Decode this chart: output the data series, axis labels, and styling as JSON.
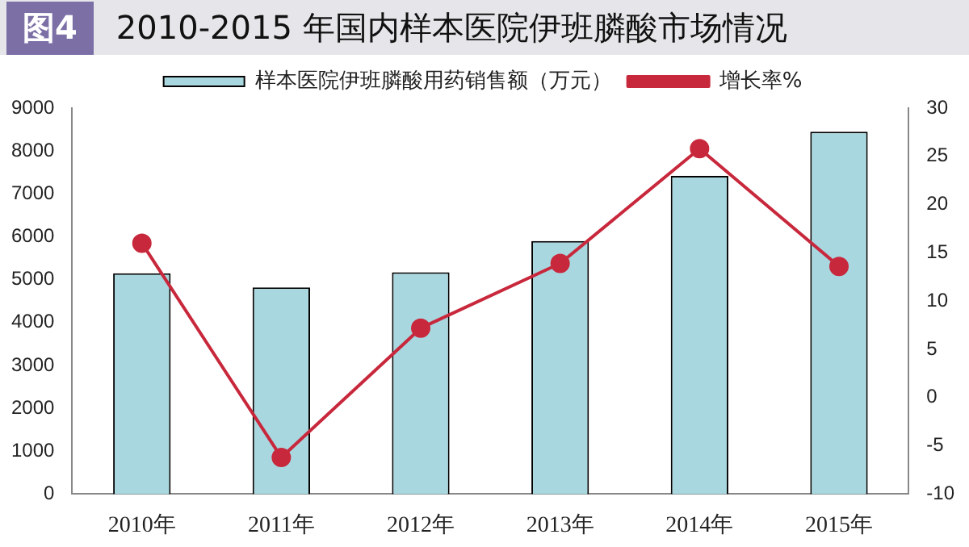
{
  "chart_data": {
    "type": "bar",
    "title": "2010-2015 年国内样本医院伊班膦酸市场情况",
    "annotations": [
      "图4"
    ],
    "categories": [
      "2010年",
      "2011年",
      "2012年",
      "2013年",
      "2014年",
      "2015年"
    ],
    "series": [
      {
        "name": "样本医院伊班膦酸用药销售额（万元）",
        "color": "#a9d7df",
        "values": [
          5150,
          4820,
          5170,
          5900,
          7420,
          8450
        ]
      },
      {
        "name": "增长率%",
        "type": "line",
        "axis": "y2",
        "color": "#c8283c",
        "marker": "circle",
        "values": [
          16,
          -6.2,
          7.2,
          13.9,
          25.8,
          13.6
        ]
      }
    ],
    "ylim": [
      0,
      9000
    ],
    "yticks": [
      0,
      1000,
      2000,
      3000,
      4000,
      5000,
      6000,
      7000,
      8000,
      9000
    ],
    "y2lim": [
      -10,
      30
    ],
    "y2ticks": [
      -10,
      -5,
      0,
      5,
      10,
      15,
      20,
      25,
      30
    ],
    "grid": false,
    "legend": "top"
  }
}
